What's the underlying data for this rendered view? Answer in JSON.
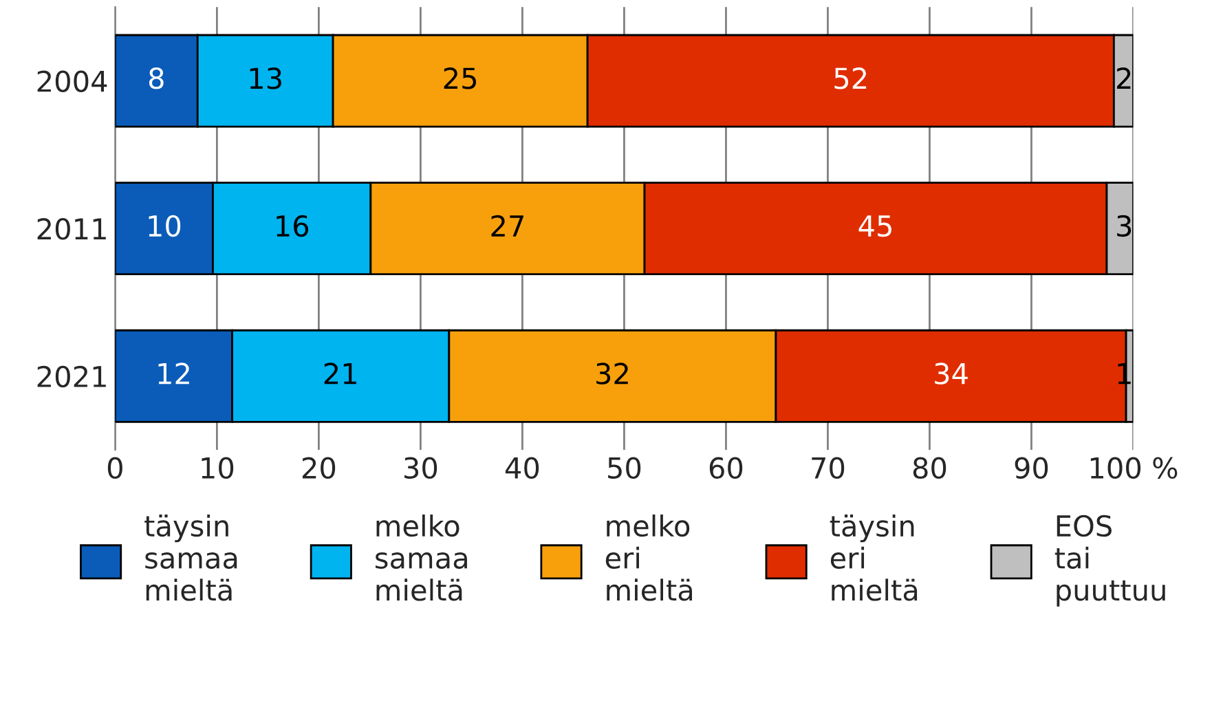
{
  "chart_data": {
    "type": "bar",
    "orientation": "horizontal",
    "stacked": true,
    "categories": [
      "2004",
      "2011",
      "2021"
    ],
    "series": [
      {
        "name": "täysin\nsamaa\nmieltä",
        "color": "#0a5cb8",
        "values": [
          8.1,
          9.6,
          11.5
        ],
        "value_labels": [
          "8",
          "10",
          "12"
        ]
      },
      {
        "name": "melko\nsamaa\nmieltä",
        "color": "#00b4f0",
        "values": [
          13.3,
          15.5,
          21.3
        ],
        "value_labels": [
          "13",
          "16",
          "21"
        ]
      },
      {
        "name": "melko\neri\nmieltä",
        "color": "#f7a00c",
        "values": [
          25.0,
          26.9,
          32.1
        ],
        "value_labels": [
          "25",
          "27",
          "32"
        ]
      },
      {
        "name": "täysin\neri\nmieltä",
        "color": "#e02d00",
        "values": [
          51.7,
          45.4,
          34.4
        ],
        "value_labels": [
          "52",
          "45",
          "34"
        ]
      },
      {
        "name": "EOS\ntai\npuuttuu",
        "color": "#bfbfbf",
        "values": [
          1.9,
          2.6,
          0.7
        ],
        "value_labels": [
          "2",
          "3",
          "1"
        ]
      }
    ],
    "xlim": [
      0,
      100
    ],
    "xticks": [
      0,
      10,
      20,
      30,
      40,
      50,
      60,
      70,
      80,
      90,
      {
        "value": 100,
        "label": "100 %"
      }
    ],
    "grid": "x",
    "legend": "bottom"
  }
}
